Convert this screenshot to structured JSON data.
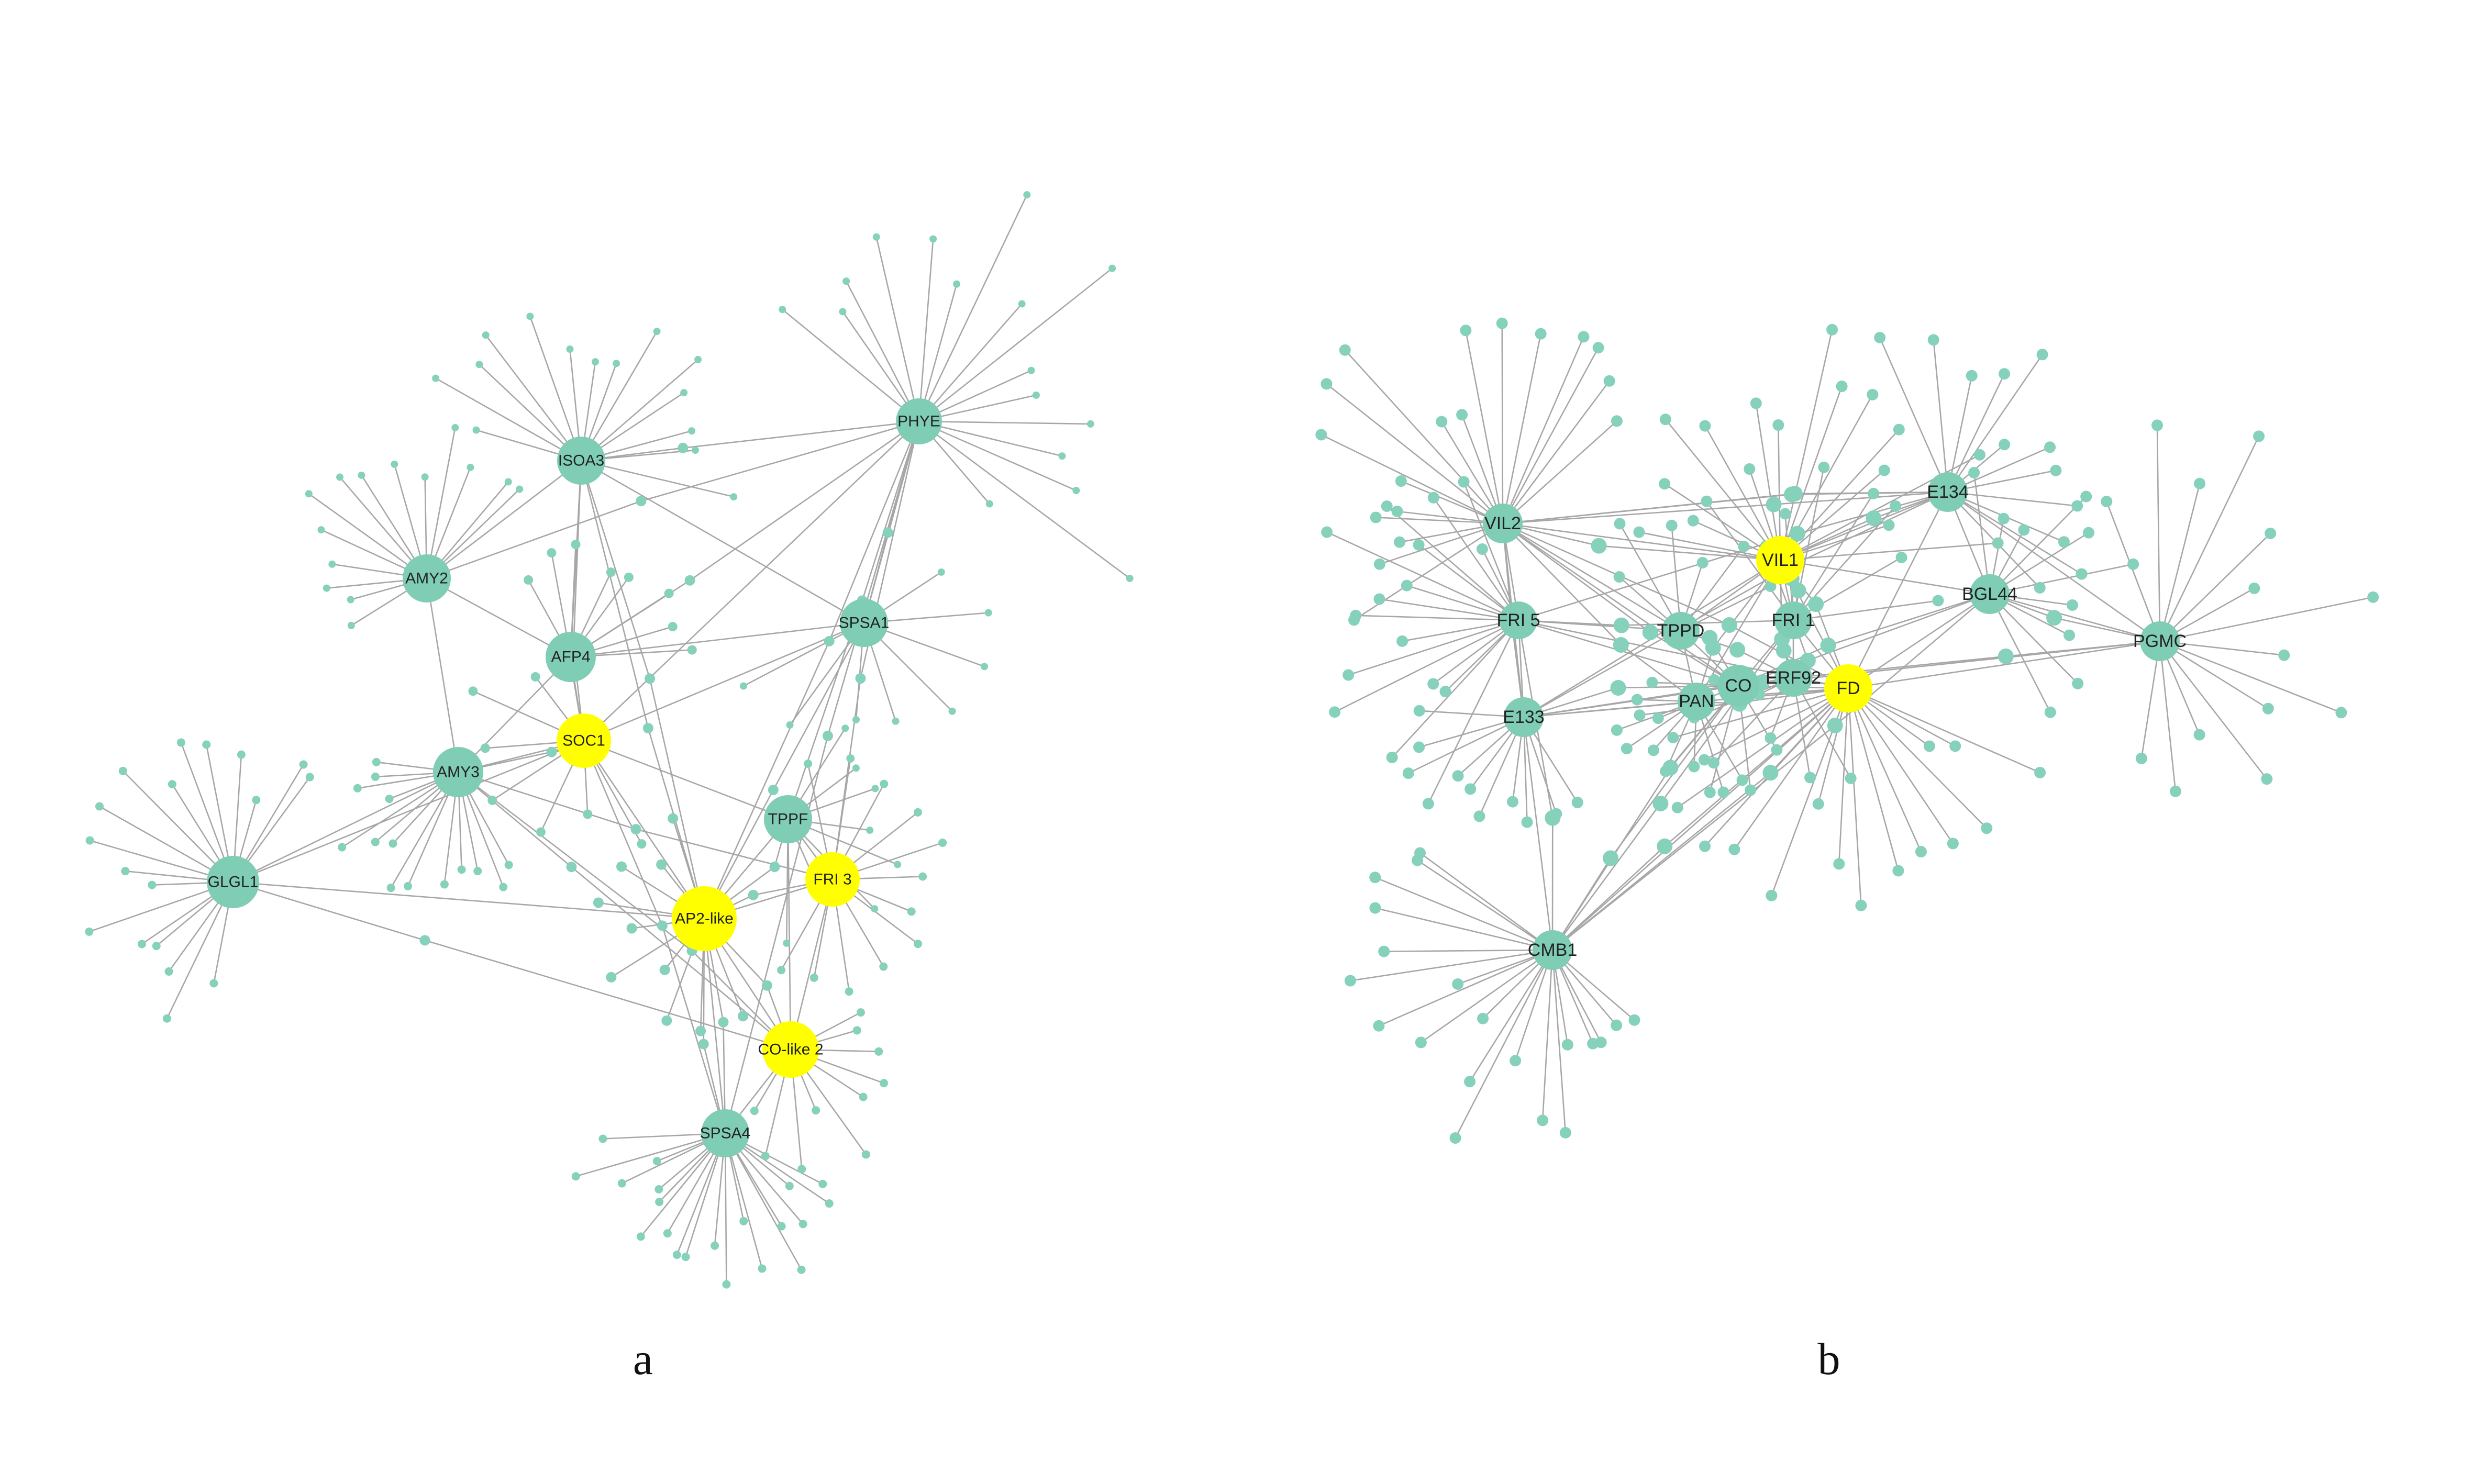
{
  "colors": {
    "node_default": "#7fcdb5",
    "node_highlight": "#ffff00",
    "edge": "#a7a7a7",
    "background": "#ffffff"
  },
  "panels": [
    {
      "label": "a",
      "hubs": [
        {
          "name": "ISOA3",
          "highlighted": false
        },
        {
          "name": "PHYE",
          "highlighted": false
        },
        {
          "name": "AMY2",
          "highlighted": false
        },
        {
          "name": "AFP4",
          "highlighted": false
        },
        {
          "name": "SPSA1",
          "highlighted": false
        },
        {
          "name": "SOC1",
          "highlighted": true
        },
        {
          "name": "AMY3",
          "highlighted": false
        },
        {
          "name": "TPPF",
          "highlighted": false
        },
        {
          "name": "FRI 3",
          "highlighted": true
        },
        {
          "name": "GLGL1",
          "highlighted": false
        },
        {
          "name": "AP2-like",
          "highlighted": true
        },
        {
          "name": "CO-like 2",
          "highlighted": true
        },
        {
          "name": "SPSA4",
          "highlighted": false
        }
      ]
    },
    {
      "label": "b",
      "hubs": [
        {
          "name": "VIL2",
          "highlighted": false
        },
        {
          "name": "E134",
          "highlighted": false
        },
        {
          "name": "VIL1",
          "highlighted": true
        },
        {
          "name": "BGL44",
          "highlighted": false
        },
        {
          "name": "FRI 5",
          "highlighted": false
        },
        {
          "name": "FRI 1",
          "highlighted": false
        },
        {
          "name": "TPPD",
          "highlighted": false
        },
        {
          "name": "PGMC",
          "highlighted": false
        },
        {
          "name": "ERF92",
          "highlighted": false
        },
        {
          "name": "CO",
          "highlighted": false
        },
        {
          "name": "FD",
          "highlighted": true
        },
        {
          "name": "PAN",
          "highlighted": false
        },
        {
          "name": "E133",
          "highlighted": false
        },
        {
          "name": "CMB1",
          "highlighted": false
        }
      ]
    }
  ]
}
